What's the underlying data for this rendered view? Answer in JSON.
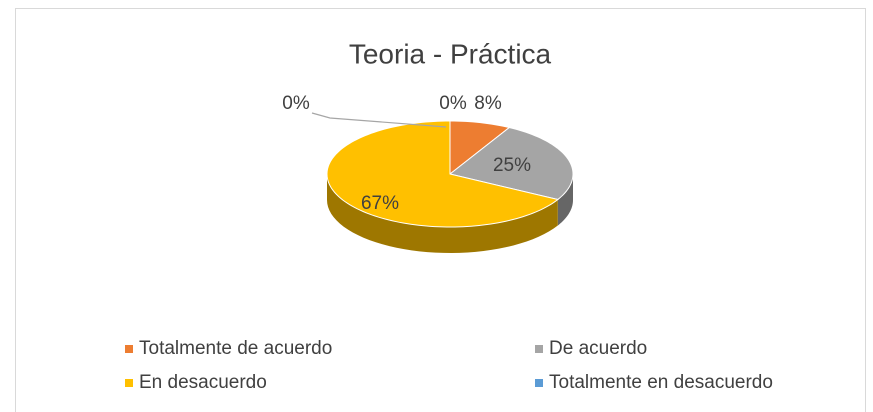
{
  "chart_data": {
    "type": "pie3d",
    "title": "Teoria - Práctica",
    "categories": [
      null,
      "Totalmente de acuerdo",
      "De acuerdo",
      "En desacuerdo",
      "Totalmente en desacuerdo"
    ],
    "values": [
      0,
      8,
      25,
      67,
      0
    ],
    "value_labels": [
      "0%",
      "8%",
      "25%",
      "67%",
      "0%"
    ],
    "colors": [
      "#4472c4",
      "#ed7d31",
      "#a5a5a5",
      "#ffc000",
      "#5b9bd5"
    ],
    "legend": "bottom"
  }
}
